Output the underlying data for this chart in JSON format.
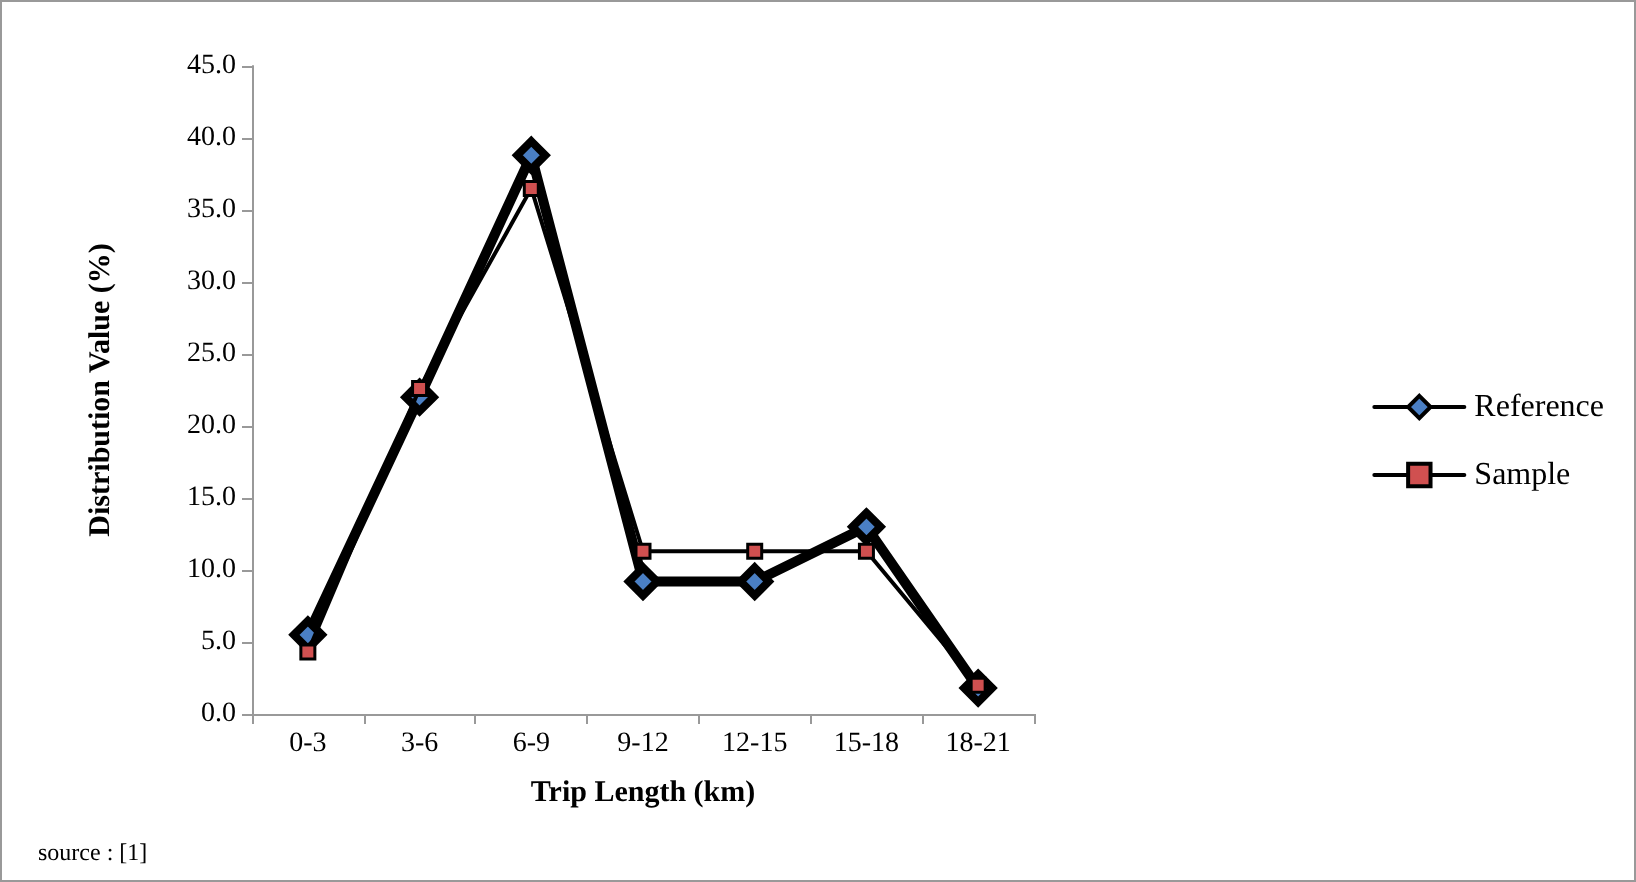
{
  "chart_data": {
    "type": "line",
    "xlabel": "Trip Length (km)",
    "ylabel": "Distribution Value (%)",
    "categories": [
      "0-3",
      "3-6",
      "6-9",
      "9-12",
      "12-15",
      "15-18",
      "18-21"
    ],
    "series": [
      {
        "name": "Reference",
        "color": "#000000",
        "marker": "diamond",
        "values": [
          5.5,
          22.0,
          38.8,
          9.2,
          9.2,
          13.0,
          1.8
        ]
      },
      {
        "name": "Sample",
        "color": "#000000",
        "marker": "square",
        "values": [
          4.3,
          22.6,
          36.5,
          11.3,
          11.3,
          11.3,
          2.0
        ]
      }
    ],
    "ylim": [
      0,
      45
    ],
    "yticks": [
      {
        "value": 0,
        "label": "0.0"
      },
      {
        "value": 5,
        "label": "5.0"
      },
      {
        "value": 10,
        "label": "10.0"
      },
      {
        "value": 15,
        "label": "15.0"
      },
      {
        "value": 20,
        "label": "20.0"
      },
      {
        "value": 25,
        "label": "25.0"
      },
      {
        "value": 30,
        "label": "30.0"
      },
      {
        "value": 35,
        "label": "35.0"
      },
      {
        "value": 40,
        "label": "40.0"
      },
      {
        "value": 45,
        "label": "45.0"
      }
    ],
    "grid": false,
    "legend": "right",
    "line_style": "solid",
    "annotations": [
      "source : [1]"
    ]
  }
}
